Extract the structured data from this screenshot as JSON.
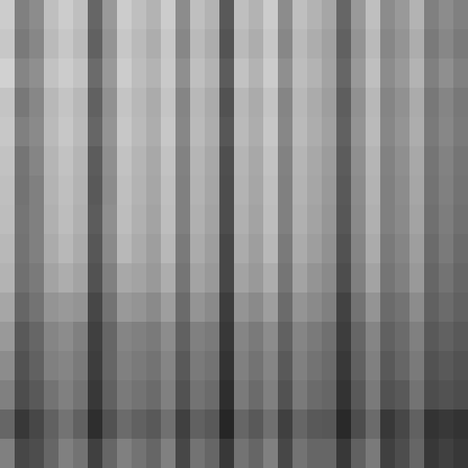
{
  "chart_data": {
    "type": "heatmap",
    "tick_labels": false,
    "cells": [
      [
        0.2,
        0.5,
        0.45,
        0.25,
        0.2,
        0.25,
        0.6,
        0.4,
        0.2,
        0.25,
        0.3,
        0.2,
        0.45,
        0.25,
        0.3,
        0.65,
        0.25,
        0.3,
        0.2,
        0.45,
        0.25,
        0.3,
        0.35,
        0.6,
        0.4,
        0.25,
        0.45,
        0.4,
        0.3,
        0.5,
        0.45,
        0.5
      ],
      [
        0.22,
        0.52,
        0.47,
        0.27,
        0.22,
        0.27,
        0.62,
        0.42,
        0.22,
        0.27,
        0.32,
        0.22,
        0.47,
        0.27,
        0.32,
        0.67,
        0.27,
        0.32,
        0.22,
        0.47,
        0.27,
        0.32,
        0.37,
        0.62,
        0.42,
        0.27,
        0.47,
        0.42,
        0.32,
        0.52,
        0.47,
        0.52
      ],
      [
        0.18,
        0.48,
        0.44,
        0.24,
        0.2,
        0.24,
        0.58,
        0.4,
        0.2,
        0.26,
        0.3,
        0.21,
        0.44,
        0.25,
        0.3,
        0.64,
        0.24,
        0.3,
        0.2,
        0.44,
        0.26,
        0.3,
        0.36,
        0.6,
        0.4,
        0.25,
        0.45,
        0.4,
        0.3,
        0.5,
        0.44,
        0.5
      ],
      [
        0.23,
        0.53,
        0.47,
        0.28,
        0.23,
        0.28,
        0.62,
        0.43,
        0.23,
        0.28,
        0.33,
        0.23,
        0.48,
        0.28,
        0.33,
        0.68,
        0.28,
        0.33,
        0.23,
        0.48,
        0.28,
        0.33,
        0.38,
        0.63,
        0.43,
        0.28,
        0.48,
        0.43,
        0.33,
        0.53,
        0.48,
        0.53
      ],
      [
        0.22,
        0.5,
        0.46,
        0.27,
        0.22,
        0.27,
        0.6,
        0.42,
        0.22,
        0.27,
        0.32,
        0.22,
        0.47,
        0.27,
        0.32,
        0.66,
        0.27,
        0.32,
        0.22,
        0.47,
        0.27,
        0.32,
        0.37,
        0.62,
        0.42,
        0.27,
        0.47,
        0.42,
        0.32,
        0.52,
        0.47,
        0.52
      ],
      [
        0.24,
        0.54,
        0.48,
        0.29,
        0.24,
        0.29,
        0.64,
        0.44,
        0.24,
        0.29,
        0.34,
        0.24,
        0.49,
        0.29,
        0.34,
        0.69,
        0.29,
        0.34,
        0.24,
        0.49,
        0.29,
        0.34,
        0.39,
        0.64,
        0.44,
        0.29,
        0.49,
        0.44,
        0.34,
        0.54,
        0.49,
        0.54
      ],
      [
        0.25,
        0.55,
        0.5,
        0.3,
        0.25,
        0.3,
        0.65,
        0.45,
        0.25,
        0.3,
        0.35,
        0.25,
        0.5,
        0.3,
        0.35,
        0.7,
        0.3,
        0.35,
        0.25,
        0.5,
        0.3,
        0.35,
        0.4,
        0.65,
        0.45,
        0.3,
        0.5,
        0.45,
        0.35,
        0.55,
        0.5,
        0.55
      ],
      [
        0.26,
        0.54,
        0.5,
        0.31,
        0.26,
        0.31,
        0.64,
        0.44,
        0.26,
        0.31,
        0.36,
        0.26,
        0.5,
        0.31,
        0.36,
        0.7,
        0.31,
        0.36,
        0.26,
        0.5,
        0.31,
        0.36,
        0.41,
        0.66,
        0.46,
        0.31,
        0.5,
        0.46,
        0.36,
        0.56,
        0.51,
        0.56
      ],
      [
        0.28,
        0.55,
        0.5,
        0.33,
        0.28,
        0.33,
        0.66,
        0.46,
        0.28,
        0.33,
        0.38,
        0.28,
        0.52,
        0.33,
        0.38,
        0.72,
        0.33,
        0.38,
        0.28,
        0.52,
        0.33,
        0.38,
        0.43,
        0.68,
        0.48,
        0.33,
        0.52,
        0.48,
        0.38,
        0.58,
        0.52,
        0.58
      ],
      [
        0.3,
        0.56,
        0.52,
        0.36,
        0.32,
        0.36,
        0.68,
        0.5,
        0.34,
        0.36,
        0.4,
        0.32,
        0.54,
        0.36,
        0.4,
        0.72,
        0.36,
        0.4,
        0.32,
        0.54,
        0.36,
        0.42,
        0.46,
        0.7,
        0.5,
        0.36,
        0.54,
        0.5,
        0.4,
        0.6,
        0.55,
        0.6
      ],
      [
        0.35,
        0.6,
        0.55,
        0.42,
        0.4,
        0.42,
        0.72,
        0.55,
        0.4,
        0.42,
        0.46,
        0.38,
        0.58,
        0.42,
        0.46,
        0.76,
        0.42,
        0.46,
        0.38,
        0.58,
        0.42,
        0.46,
        0.5,
        0.74,
        0.55,
        0.42,
        0.58,
        0.55,
        0.45,
        0.62,
        0.58,
        0.62
      ],
      [
        0.4,
        0.65,
        0.6,
        0.48,
        0.45,
        0.5,
        0.75,
        0.6,
        0.48,
        0.5,
        0.52,
        0.45,
        0.62,
        0.5,
        0.52,
        0.78,
        0.48,
        0.52,
        0.45,
        0.62,
        0.48,
        0.52,
        0.56,
        0.76,
        0.6,
        0.48,
        0.62,
        0.58,
        0.5,
        0.65,
        0.62,
        0.65
      ],
      [
        0.45,
        0.68,
        0.62,
        0.5,
        0.48,
        0.52,
        0.76,
        0.6,
        0.5,
        0.52,
        0.55,
        0.48,
        0.65,
        0.52,
        0.55,
        0.8,
        0.5,
        0.55,
        0.48,
        0.65,
        0.5,
        0.55,
        0.58,
        0.78,
        0.62,
        0.5,
        0.65,
        0.6,
        0.52,
        0.68,
        0.65,
        0.68
      ],
      [
        0.5,
        0.7,
        0.65,
        0.55,
        0.5,
        0.55,
        0.78,
        0.62,
        0.52,
        0.55,
        0.58,
        0.5,
        0.68,
        0.55,
        0.58,
        0.82,
        0.52,
        0.58,
        0.5,
        0.68,
        0.52,
        0.58,
        0.6,
        0.8,
        0.65,
        0.52,
        0.68,
        0.65,
        0.55,
        0.7,
        0.68,
        0.7
      ],
      [
        0.6,
        0.78,
        0.72,
        0.62,
        0.55,
        0.62,
        0.82,
        0.68,
        0.58,
        0.62,
        0.65,
        0.56,
        0.75,
        0.62,
        0.65,
        0.85,
        0.6,
        0.65,
        0.56,
        0.75,
        0.6,
        0.65,
        0.66,
        0.84,
        0.7,
        0.58,
        0.78,
        0.72,
        0.62,
        0.8,
        0.78,
        0.8
      ],
      [
        0.5,
        0.72,
        0.7,
        0.6,
        0.5,
        0.55,
        0.75,
        0.6,
        0.5,
        0.55,
        0.6,
        0.5,
        0.72,
        0.55,
        0.6,
        0.78,
        0.55,
        0.6,
        0.5,
        0.72,
        0.55,
        0.6,
        0.6,
        0.78,
        0.62,
        0.52,
        0.75,
        0.7,
        0.6,
        0.78,
        0.75,
        0.78
      ]
    ]
  }
}
